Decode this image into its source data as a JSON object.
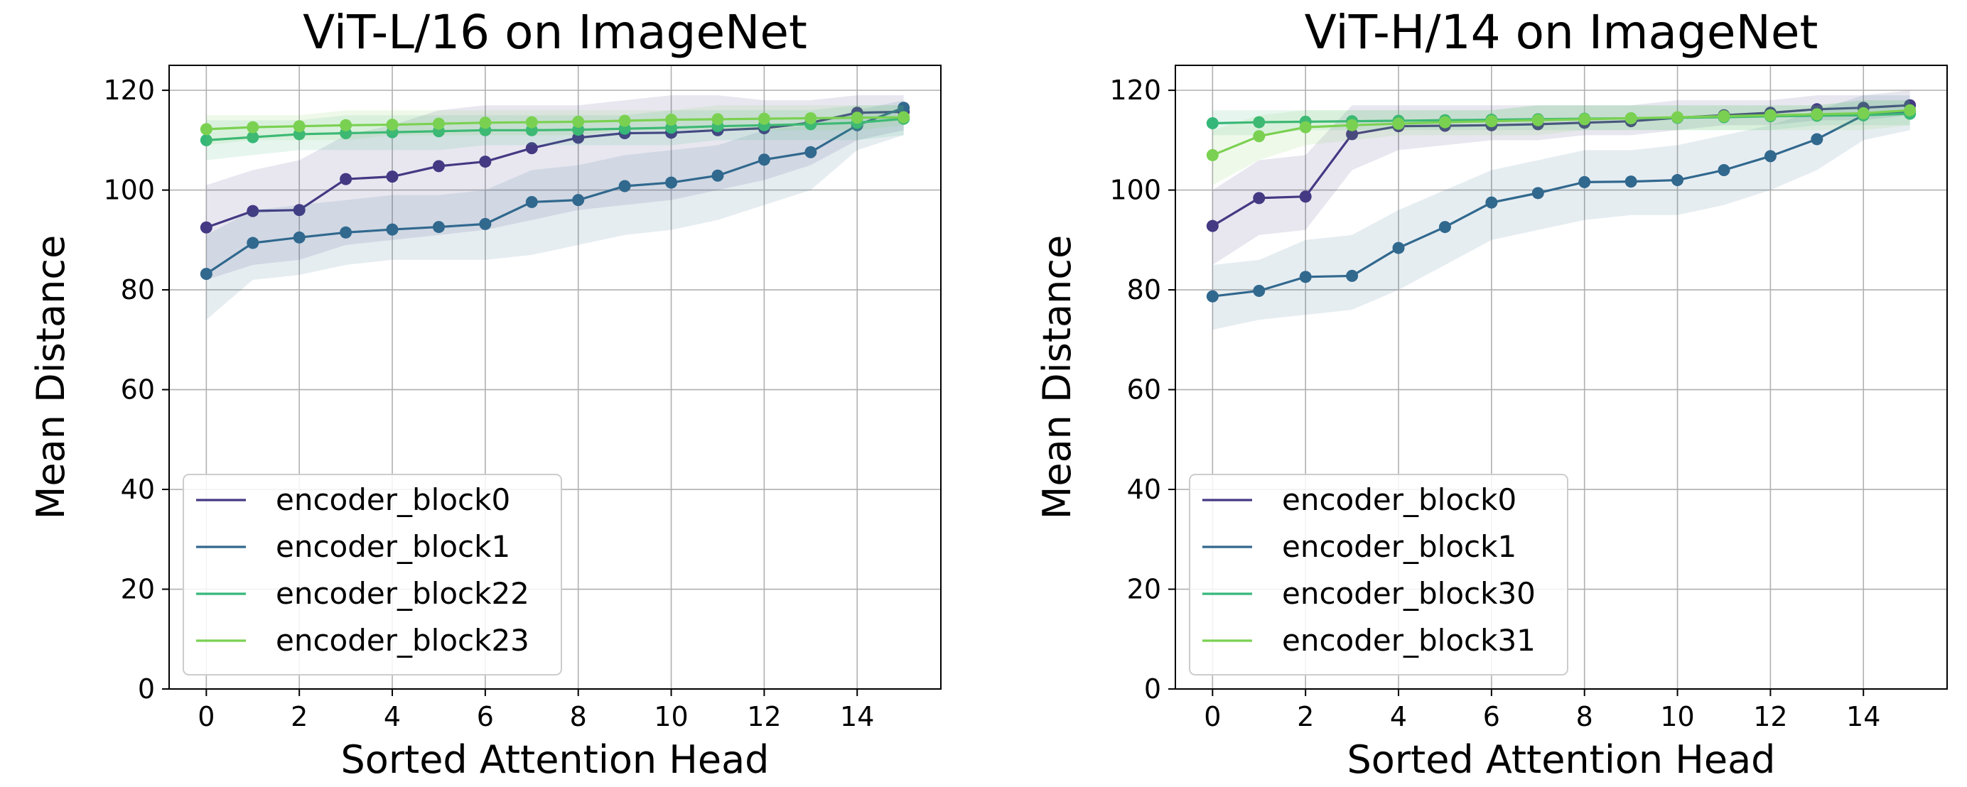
{
  "chart_data": [
    {
      "type": "line",
      "title": "ViT-L/16 on ImageNet",
      "xlabel": "Sorted Attention Head",
      "ylabel": "Mean Distance",
      "xlim": [
        -0.8,
        15.8
      ],
      "ylim": [
        0,
        125
      ],
      "xticks": [
        "0",
        "2",
        "4",
        "6",
        "8",
        "10",
        "12",
        "14"
      ],
      "yticks": [
        "0",
        "20",
        "40",
        "60",
        "80",
        "100",
        "120"
      ],
      "grid": true,
      "legend_position": "lower-left",
      "x": [
        0,
        1,
        2,
        3,
        4,
        5,
        6,
        7,
        8,
        9,
        10,
        11,
        12,
        13,
        14,
        15
      ],
      "series": [
        {
          "name": "encoder_block0",
          "color": "#443983",
          "values": [
            92.5,
            95.8,
            96.0,
            102.2,
            102.7,
            104.8,
            105.7,
            108.4,
            110.5,
            111.4,
            111.5,
            112.0,
            112.4,
            113.5,
            115.5,
            115.7
          ],
          "band_lower": [
            82,
            85,
            86,
            89,
            90,
            91,
            92,
            94,
            96,
            97,
            98,
            100,
            102,
            105,
            110,
            112
          ],
          "band_upper": [
            101,
            104,
            106,
            111,
            113,
            116,
            117,
            117,
            117,
            118,
            119,
            119,
            118,
            118,
            119,
            119
          ]
        },
        {
          "name": "encoder_block1",
          "color": "#31688e",
          "values": [
            83.2,
            89.4,
            90.5,
            91.5,
            92.1,
            92.6,
            93.2,
            97.6,
            98.0,
            100.8,
            101.5,
            102.9,
            106.1,
            107.6,
            113.0,
            116.5
          ],
          "band_lower": [
            74,
            82,
            83,
            85,
            86,
            86,
            86,
            87,
            89,
            91,
            92,
            94,
            97,
            100,
            108,
            111
          ],
          "band_upper": [
            91,
            96,
            97,
            98,
            99,
            99,
            100,
            104,
            105,
            107,
            108,
            109,
            112,
            113,
            116,
            118
          ]
        },
        {
          "name": "encoder_block22",
          "color": "#35b779",
          "values": [
            110.0,
            110.6,
            111.2,
            111.4,
            111.6,
            111.8,
            112.0,
            112.0,
            112.1,
            112.3,
            112.5,
            112.8,
            113.0,
            113.2,
            113.5,
            114.3
          ],
          "band_lower": [
            106,
            107,
            108,
            108,
            108,
            108,
            109,
            109,
            109,
            109,
            109,
            110,
            110,
            110,
            110,
            111
          ],
          "band_upper": [
            114,
            114,
            114,
            115,
            115,
            115,
            115,
            115,
            115,
            115,
            116,
            116,
            116,
            116,
            117,
            117
          ]
        },
        {
          "name": "encoder_block23",
          "color": "#7ad151",
          "values": [
            112.2,
            112.6,
            112.8,
            113.0,
            113.1,
            113.3,
            113.5,
            113.6,
            113.7,
            113.9,
            114.1,
            114.2,
            114.3,
            114.4,
            114.5,
            114.6
          ],
          "band_lower": [
            109,
            110,
            110,
            110,
            111,
            111,
            111,
            111,
            111,
            112,
            112,
            112,
            112,
            112,
            112,
            113
          ],
          "band_upper": [
            115,
            115,
            115,
            116,
            116,
            116,
            116,
            116,
            116,
            116,
            116,
            117,
            117,
            117,
            117,
            117
          ]
        }
      ]
    },
    {
      "type": "line",
      "title": "ViT-H/14 on ImageNet",
      "xlabel": "Sorted Attention Head",
      "ylabel": "Mean Distance",
      "xlim": [
        -0.8,
        15.8
      ],
      "ylim": [
        0,
        125
      ],
      "xticks": [
        "0",
        "2",
        "4",
        "6",
        "8",
        "10",
        "12",
        "14"
      ],
      "yticks": [
        "0",
        "20",
        "40",
        "60",
        "80",
        "100",
        "120"
      ],
      "grid": true,
      "legend_position": "lower-left",
      "x": [
        0,
        1,
        2,
        3,
        4,
        5,
        6,
        7,
        8,
        9,
        10,
        11,
        12,
        13,
        14,
        15
      ],
      "series": [
        {
          "name": "encoder_block0",
          "color": "#443983",
          "values": [
            92.8,
            98.4,
            98.7,
            111.2,
            112.8,
            112.9,
            113.0,
            113.2,
            113.5,
            113.8,
            114.5,
            115.0,
            115.5,
            116.2,
            116.5,
            117.0
          ],
          "band_lower": [
            85,
            91,
            92,
            104,
            108,
            109,
            110,
            110,
            111,
            111,
            112,
            113,
            113,
            114,
            114,
            115
          ],
          "band_upper": [
            100,
            106,
            107,
            117,
            117,
            117,
            117,
            117,
            117,
            117,
            118,
            118,
            118,
            119,
            119,
            120
          ]
        },
        {
          "name": "encoder_block1",
          "color": "#31688e",
          "values": [
            78.7,
            79.8,
            82.6,
            82.8,
            88.4,
            92.6,
            97.5,
            99.4,
            101.6,
            101.7,
            102.0,
            104.0,
            106.8,
            110.2,
            115.0,
            115.8
          ],
          "band_lower": [
            72,
            74,
            75,
            76,
            80,
            85,
            90,
            92,
            94,
            95,
            95,
            97,
            100,
            104,
            110,
            112
          ],
          "band_upper": [
            85,
            86,
            90,
            91,
            96,
            100,
            104,
            106,
            108,
            108,
            109,
            111,
            113,
            116,
            119,
            119
          ]
        },
        {
          "name": "encoder_block30",
          "color": "#35b779",
          "values": [
            113.4,
            113.6,
            113.7,
            113.8,
            113.9,
            114.0,
            114.1,
            114.2,
            114.3,
            114.4,
            114.5,
            114.6,
            114.8,
            114.9,
            115.0,
            115.3
          ],
          "band_lower": [
            111,
            111,
            112,
            112,
            112,
            112,
            112,
            112,
            112,
            112,
            112,
            112,
            112,
            113,
            113,
            113
          ],
          "band_upper": [
            116,
            116,
            116,
            116,
            116,
            116,
            116,
            117,
            117,
            117,
            117,
            117,
            117,
            117,
            118,
            118
          ]
        },
        {
          "name": "encoder_block31",
          "color": "#7ad151",
          "values": [
            107.0,
            110.8,
            112.6,
            113.0,
            113.3,
            113.6,
            113.8,
            114.0,
            114.2,
            114.4,
            114.6,
            114.8,
            115.0,
            115.2,
            115.4,
            116.0
          ],
          "band_lower": [
            101,
            106,
            109,
            110,
            111,
            111,
            111,
            111,
            112,
            112,
            112,
            112,
            112,
            112,
            112,
            113
          ],
          "band_upper": [
            112,
            115,
            116,
            116,
            116,
            116,
            116,
            117,
            117,
            117,
            117,
            117,
            117,
            117,
            118,
            118
          ]
        }
      ]
    }
  ]
}
